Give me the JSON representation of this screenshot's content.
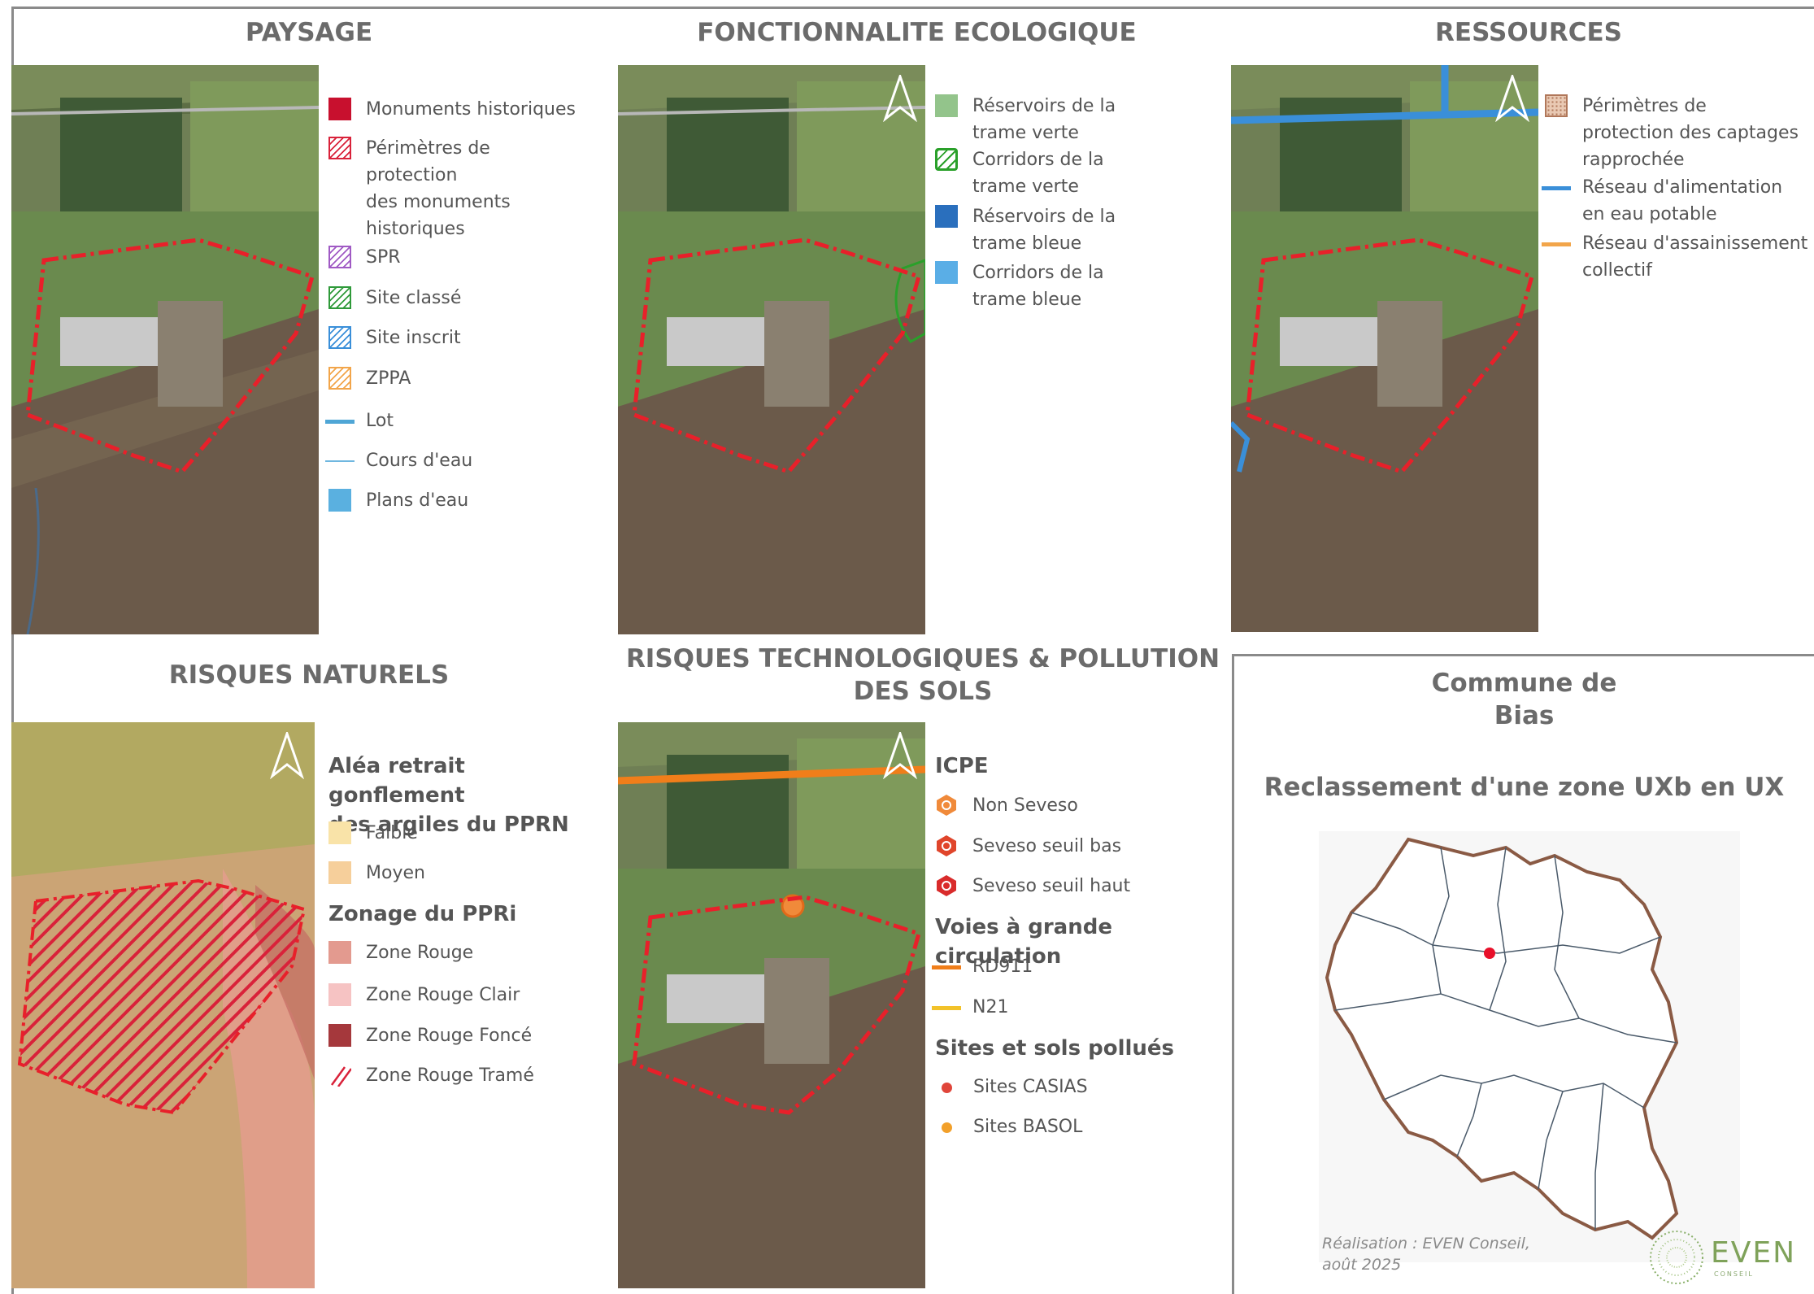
{
  "panels": {
    "paysage": {
      "title": "PAYSAGE",
      "legend": [
        {
          "label": "Monuments historiques",
          "swatch": "solid",
          "color": "#c8102e"
        },
        {
          "label": "Périmètres de\nprotection\ndes monuments\nhistoriques",
          "swatch": "hatch",
          "color": "#d9223a"
        },
        {
          "label": "SPR",
          "swatch": "hatch",
          "color": "#a05ac4"
        },
        {
          "label": "Site classé",
          "swatch": "hatch",
          "color": "#2f9a3a"
        },
        {
          "label": "Site inscrit",
          "swatch": "hatch",
          "color": "#3a8fd9"
        },
        {
          "label": "ZPPA",
          "swatch": "hatch",
          "color": "#f2a54a"
        },
        {
          "label": "Lot",
          "swatch": "line",
          "color": "#4fa6d6"
        },
        {
          "label": "Cours d'eau",
          "swatch": "thin-line",
          "color": "#6fb7e0"
        },
        {
          "label": "Plans d'eau",
          "swatch": "solid",
          "color": "#5ab0e0"
        }
      ]
    },
    "fonctionnalite": {
      "title": "FONCTIONNALITE ECOLOGIQUE",
      "legend": [
        {
          "label": "Réservoirs de la\ntrame verte",
          "swatch": "solid",
          "color": "#93c48b"
        },
        {
          "label": "Corridors de la\ntrame verte",
          "swatch": "hatch",
          "color": "#2aa02a"
        },
        {
          "label": "Réservoirs de la\ntrame bleue",
          "swatch": "solid",
          "color": "#2a6fbd"
        },
        {
          "label": "Corridors de la\ntrame bleue",
          "swatch": "solid",
          "color": "#5aaee6"
        }
      ]
    },
    "ressources": {
      "title": "RESSOURCES",
      "legend": [
        {
          "label": "Périmètres de\nprotection des captages\nrapprochée",
          "swatch": "dotted",
          "color": "#b0775a"
        },
        {
          "label": "Réseau d'alimentation\nen eau potable",
          "swatch": "line",
          "color": "#3a8fd9"
        },
        {
          "label": "Réseau d'assainissement\ncollectif",
          "swatch": "line",
          "color": "#f2a54a"
        }
      ]
    },
    "risques_naturels": {
      "title": "RISQUES NATURELS",
      "heading_1": "Aléa retrait gonflement\ndes argiles du PPRN",
      "legend_1": [
        {
          "label": "Faible",
          "swatch": "solid",
          "color": "#f9e3a8"
        },
        {
          "label": "Moyen",
          "swatch": "solid",
          "color": "#f6cf9b"
        }
      ],
      "heading_2": "Zonage du PPRi",
      "legend_2": [
        {
          "label": "Zone Rouge",
          "swatch": "solid",
          "color": "#e39a8f"
        },
        {
          "label": "Zone Rouge Clair",
          "swatch": "solid",
          "color": "#f6c3c3"
        },
        {
          "label": "Zone Rouge Foncé",
          "swatch": "solid",
          "color": "#a5383c"
        },
        {
          "label": "Zone Rouge Tramé",
          "swatch": "slash",
          "color": "#d9223a"
        }
      ]
    },
    "risques_techno": {
      "title": "RISQUES TECHNOLOGIQUES & POLLUTION\nDES SOLS",
      "heading_1": "ICPE",
      "legend_1": [
        {
          "label": "Non Seveso",
          "swatch": "hex",
          "color": "#f08a3a"
        },
        {
          "label": "Seveso seuil bas",
          "swatch": "hex",
          "color": "#e0452b"
        },
        {
          "label": "Seveso seuil haut",
          "swatch": "hex",
          "color": "#d92b2b"
        }
      ],
      "heading_2": "Voies à grande circulation",
      "legend_2": [
        {
          "label": "RD911",
          "swatch": "line",
          "color": "#f07e1a"
        },
        {
          "label": "N21",
          "swatch": "line",
          "color": "#f2c22a"
        }
      ],
      "heading_3": "Sites et sols pollués",
      "legend_3": [
        {
          "label": "Sites CASIAS",
          "swatch": "dot",
          "color": "#e0453a"
        },
        {
          "label": "Sites BASOL",
          "swatch": "dot",
          "color": "#f2a02a"
        }
      ]
    }
  },
  "info": {
    "commune": "Commune de\nBias",
    "subtitle": "Reclassement d'une zone UXb en UX",
    "credit": "Réalisation : EVEN Conseil,\naoût 2025",
    "logo": "EVEN",
    "logo_sub": "CONSEIL"
  },
  "colors": {
    "perimeter": "#e8202a",
    "frame": "#8a8a8a",
    "commune_outline": "#8a5a44",
    "site_marker": "#e8102a"
  }
}
